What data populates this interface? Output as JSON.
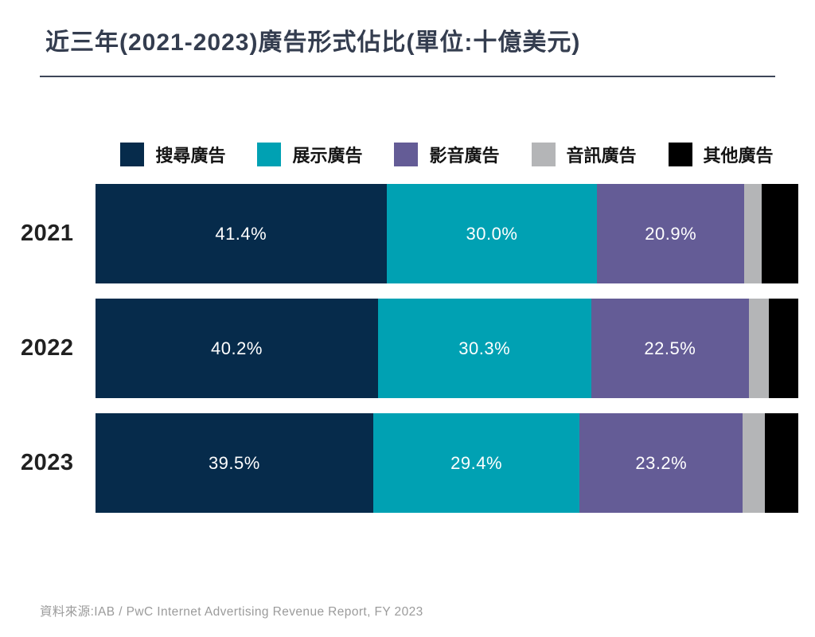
{
  "page": {
    "title": "近三年(2021-2023)廣告形式佔比(單位:十億美元)",
    "source_note": "資料來源:IAB / PwC Internet Advertising Revenue Report, FY 2023"
  },
  "colors": {
    "search": "#062b4b",
    "display": "#00a1b3",
    "video": "#645c96",
    "audio": "#b4b5b7",
    "other": "#000000",
    "title_text": "#343d4f",
    "rule": "#3e4658",
    "year_text": "#212121",
    "value_label_text": "#ffffff",
    "source_text": "#9b9b9b",
    "background": "#ffffff"
  },
  "legend": {
    "items": [
      {
        "key": "search",
        "label": "搜尋廣告",
        "color": "#062b4b"
      },
      {
        "key": "display",
        "label": "展示廣告",
        "color": "#00a1b3"
      },
      {
        "key": "video",
        "label": "影音廣告",
        "color": "#645c96"
      },
      {
        "key": "audio",
        "label": "音訊廣告",
        "color": "#b4b5b7"
      },
      {
        "key": "other",
        "label": "其他廣告",
        "color": "#000000"
      }
    ]
  },
  "chart_data": {
    "type": "bar",
    "subtype": "horizontal-stacked-percentage",
    "title": "近三年(2021-2023)廣告形式佔比(單位:十億美元)",
    "categories": [
      "2021",
      "2022",
      "2023"
    ],
    "series": [
      {
        "key": "search",
        "name": "搜尋廣告",
        "color": "#062b4b",
        "values": [
          41.4,
          40.2,
          39.5
        ],
        "value_labels": [
          "41.4%",
          "40.2%",
          "39.5%"
        ]
      },
      {
        "key": "display",
        "name": "展示廣告",
        "color": "#00a1b3",
        "values": [
          30.0,
          30.3,
          29.4
        ],
        "value_labels": [
          "30.0%",
          "30.3%",
          "29.4%"
        ]
      },
      {
        "key": "video",
        "name": "影音廣告",
        "color": "#645c96",
        "values": [
          20.9,
          22.5,
          23.2
        ],
        "value_labels": [
          "20.9%",
          "22.5%",
          "23.2%"
        ]
      },
      {
        "key": "audio",
        "name": "音訊廣告",
        "color": "#b4b5b7",
        "values": [
          2.5,
          2.8,
          3.1
        ],
        "value_labels": [
          "",
          "",
          ""
        ]
      },
      {
        "key": "other",
        "name": "其他廣告",
        "color": "#000000",
        "values": [
          5.2,
          4.2,
          4.8
        ],
        "value_labels": [
          "",
          "",
          ""
        ]
      }
    ],
    "xlim": [
      0,
      100
    ],
    "grid": false,
    "legend_position": "top-center",
    "value_label_color": "#ffffff",
    "source": "資料來源:IAB / PwC Internet Advertising Revenue Report, FY 2023"
  }
}
